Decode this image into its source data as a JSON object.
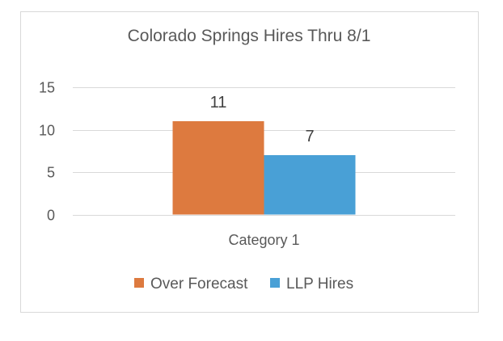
{
  "chart_data": {
    "type": "bar",
    "title": "Colorado Springs Hires Thru 8/1",
    "categories": [
      "Category 1"
    ],
    "series": [
      {
        "name": "Over Forecast",
        "values": [
          11
        ],
        "color": "#DD7A3F"
      },
      {
        "name": "LLP Hires",
        "values": [
          7
        ],
        "color": "#49A0D6"
      }
    ],
    "ylim": [
      0,
      15
    ],
    "yticks": [
      0,
      5,
      10,
      15
    ],
    "grid": true,
    "legend": "bottom",
    "data_labels": true
  }
}
